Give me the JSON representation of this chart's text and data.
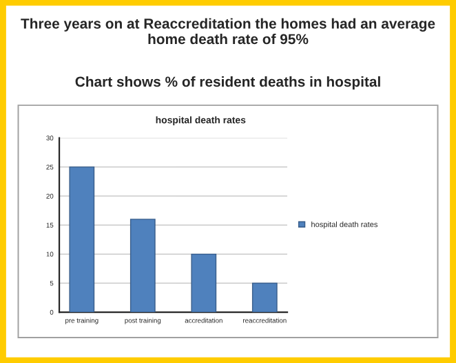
{
  "chart_data": {
    "type": "bar",
    "title": "Three years on at Reaccreditation the homes had an average home death rate of 95%",
    "subtitle": "Chart shows % of resident deaths in hospital",
    "annotations": [
      "hospital death rates"
    ],
    "categories": [
      "pre training",
      "post training",
      "accreditation",
      "reaccreditation"
    ],
    "series": [
      {
        "name": "hospital death rates",
        "color": "#4f81bd",
        "values": [
          25,
          16,
          10,
          5
        ]
      }
    ],
    "ylim": [
      0,
      30
    ],
    "yticks": [
      0,
      5,
      10,
      15,
      20,
      25,
      30
    ],
    "grid": "y",
    "legend": "right"
  }
}
